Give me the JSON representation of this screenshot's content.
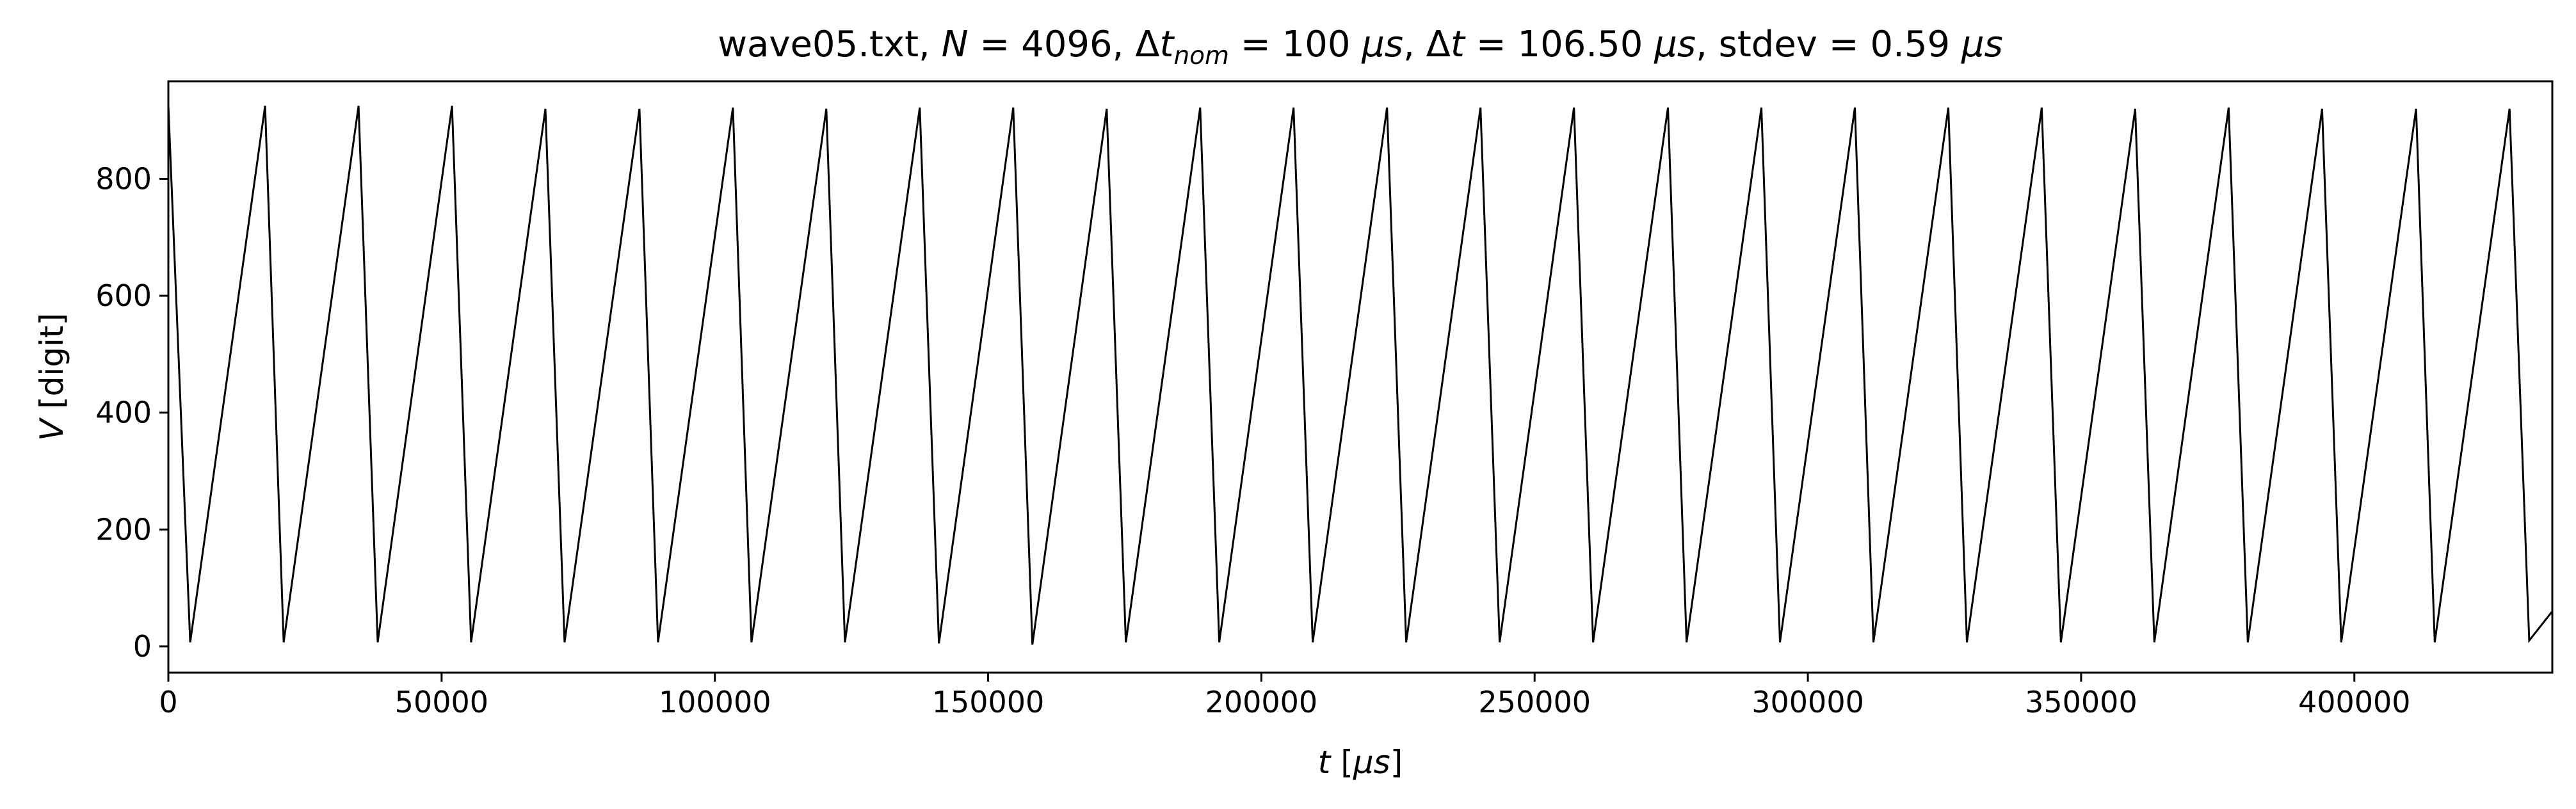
{
  "chart_data": {
    "type": "line",
    "title": {
      "parts": [
        {
          "text": "wave05.txt, ",
          "style": "normal"
        },
        {
          "text": "N",
          "style": "italic"
        },
        {
          "text": " = 4096, Δ",
          "style": "normal"
        },
        {
          "text": "t",
          "style": "italic"
        },
        {
          "text": "nom",
          "style": "sub"
        },
        {
          "text": " = 100 ",
          "style": "normal"
        },
        {
          "text": "μs",
          "style": "italic"
        },
        {
          "text": ", Δ",
          "style": "normal"
        },
        {
          "text": "t",
          "style": "italic"
        },
        {
          "text": " = 106.50 ",
          "style": "normal"
        },
        {
          "text": "μs",
          "style": "italic"
        },
        {
          "text": ", stdev = 0.59 ",
          "style": "normal"
        },
        {
          "text": "μs",
          "style": "italic"
        }
      ]
    },
    "xlabel": {
      "parts": [
        {
          "text": "t",
          "style": "italic"
        },
        {
          "text": " [",
          "style": "normal"
        },
        {
          "text": "μs",
          "style": "italic"
        },
        {
          "text": "]",
          "style": "normal"
        }
      ]
    },
    "ylabel": {
      "parts": [
        {
          "text": "V",
          "style": "italic"
        },
        {
          "text": " [digit]",
          "style": "normal"
        }
      ]
    },
    "xlim": [
      0,
      436224
    ],
    "ylim": [
      -45,
      967
    ],
    "x_ticks": [
      0,
      50000,
      100000,
      150000,
      200000,
      250000,
      300000,
      350000,
      400000
    ],
    "x_tick_labels": [
      "0",
      "50000",
      "100000",
      "150000",
      "200000",
      "250000",
      "300000",
      "350000",
      "400000"
    ],
    "y_ticks": [
      0,
      200,
      400,
      600,
      800
    ],
    "y_tick_labels": [
      "0",
      "200",
      "400",
      "600",
      "800"
    ],
    "grid": false,
    "series": [
      {
        "color": "#000000",
        "points": [
          [
            0,
            925
          ],
          [
            4000,
            7
          ],
          [
            17700,
            925
          ],
          [
            21100,
            7
          ],
          [
            34800,
            925
          ],
          [
            38300,
            7
          ],
          [
            51900,
            925
          ],
          [
            55400,
            7
          ],
          [
            69000,
            920
          ],
          [
            72500,
            7
          ],
          [
            86200,
            920
          ],
          [
            89600,
            7
          ],
          [
            103300,
            922
          ],
          [
            106700,
            7
          ],
          [
            120400,
            920
          ],
          [
            123800,
            7
          ],
          [
            137500,
            922
          ],
          [
            141000,
            5
          ],
          [
            154600,
            922
          ],
          [
            158100,
            3
          ],
          [
            171700,
            920
          ],
          [
            175200,
            7
          ],
          [
            188800,
            922
          ],
          [
            192300,
            7
          ],
          [
            205900,
            922
          ],
          [
            209400,
            7
          ],
          [
            223000,
            922
          ],
          [
            226500,
            7
          ],
          [
            240100,
            922
          ],
          [
            243600,
            7
          ],
          [
            257200,
            922
          ],
          [
            260700,
            7
          ],
          [
            274400,
            922
          ],
          [
            277800,
            7
          ],
          [
            291500,
            922
          ],
          [
            294900,
            7
          ],
          [
            308600,
            922
          ],
          [
            312000,
            7
          ],
          [
            325700,
            922
          ],
          [
            329100,
            7
          ],
          [
            342800,
            922
          ],
          [
            346300,
            7
          ],
          [
            359900,
            920
          ],
          [
            363400,
            7
          ],
          [
            377000,
            922
          ],
          [
            380500,
            7
          ],
          [
            394100,
            920
          ],
          [
            397600,
            7
          ],
          [
            411300,
            920
          ],
          [
            414700,
            7
          ],
          [
            428400,
            920
          ],
          [
            432000,
            10
          ],
          [
            436224,
            60
          ]
        ]
      }
    ]
  }
}
